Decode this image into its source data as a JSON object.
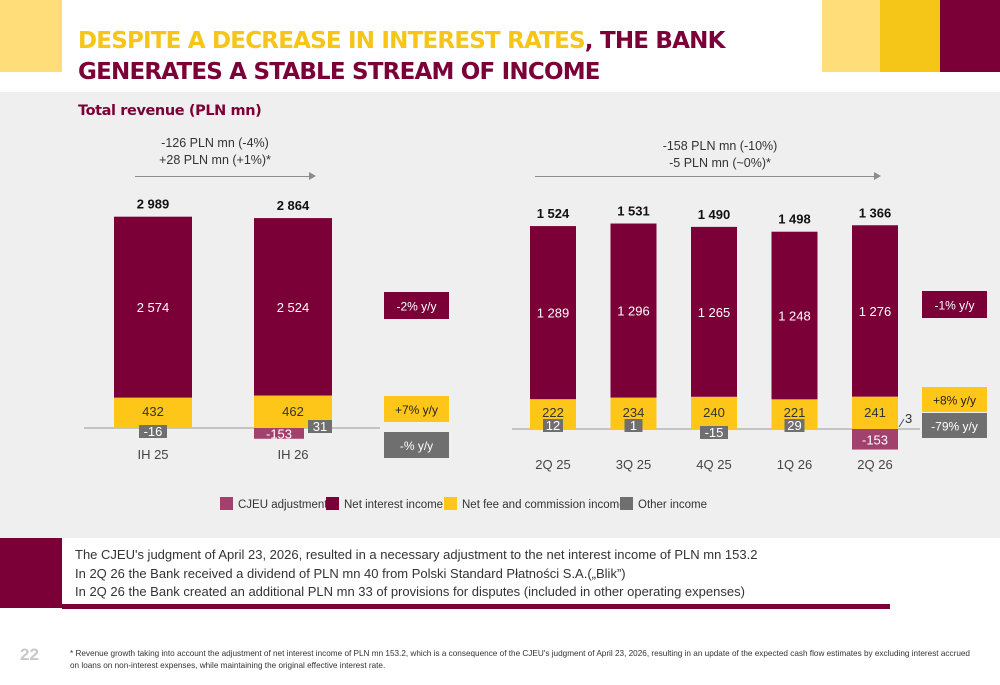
{
  "header": {
    "title_highlight": "DESPITE A DECREASE IN INTEREST RATES",
    "title_rest": ", THE BANK",
    "title_line2": "GENERATES A STABLE STREAM OF INCOME"
  },
  "subtitle": "Total revenue (PLN mn)",
  "change_notes": {
    "left": [
      "-126 PLN mn (-4%)",
      "+28 PLN mn (+1%)*"
    ],
    "right": [
      "-158 PLN mn (-10%)",
      "-5 PLN mn (~0%)*"
    ]
  },
  "colors": {
    "cjeu": "#a3416e",
    "nii": "#7a0037",
    "fee": "#ffc61a",
    "other": "#6f6f6f",
    "brand_yellow": "#f5c518"
  },
  "chart_data": [
    {
      "type": "bar",
      "stacked": true,
      "title": "Total revenue (PLN mn)",
      "categories": [
        "IH 25",
        "IH 26"
      ],
      "totals": [
        "2 989",
        "2 864"
      ],
      "series": [
        {
          "name": "Net interest income",
          "values": [
            2574,
            2524
          ],
          "labels": [
            "2 574",
            "2 524"
          ]
        },
        {
          "name": "Net fee and commission income",
          "values": [
            432,
            462
          ],
          "labels": [
            "432",
            "462"
          ]
        },
        {
          "name": "Other income",
          "values": [
            -16,
            31
          ],
          "labels": [
            "-16",
            "31"
          ]
        },
        {
          "name": "CJEU adjustment",
          "values": [
            0,
            -153
          ],
          "labels": [
            "",
            "-153"
          ]
        }
      ],
      "yoy": [
        "-2% y/y",
        "+7% y/y",
        "-% y/y"
      ]
    },
    {
      "type": "bar",
      "stacked": true,
      "categories": [
        "2Q 25",
        "3Q 25",
        "4Q 25",
        "1Q 26",
        "2Q 26"
      ],
      "totals": [
        "1 524",
        "1 531",
        "1 490",
        "1 498",
        "1 366"
      ],
      "series": [
        {
          "name": "Net interest income",
          "values": [
            1289,
            1296,
            1265,
            1248,
            1276
          ],
          "labels": [
            "1 289",
            "1 296",
            "1 265",
            "1 248",
            "1 276"
          ]
        },
        {
          "name": "Net fee and commission income",
          "values": [
            222,
            234,
            240,
            221,
            241
          ],
          "labels": [
            "222",
            "234",
            "240",
            "221",
            "241"
          ]
        },
        {
          "name": "Other income",
          "values": [
            12,
            1,
            -15,
            29,
            3
          ],
          "labels": [
            "12",
            "1",
            "-15",
            "29",
            "3"
          ]
        },
        {
          "name": "CJEU adjustment",
          "values": [
            0,
            0,
            0,
            0,
            -153
          ],
          "labels": [
            "",
            "",
            "",
            "",
            "-153"
          ]
        }
      ],
      "yoy": [
        "-1% y/y",
        "+8% y/y",
        "-79% y/y"
      ]
    }
  ],
  "legend": [
    {
      "label": "CJEU adjustment",
      "key": "cjeu"
    },
    {
      "label": "Net interest income",
      "key": "nii"
    },
    {
      "label": "Net fee and commission income",
      "key": "fee"
    },
    {
      "label": "Other income",
      "key": "other"
    }
  ],
  "notes": [
    "The CJEU's judgment of April 23, 2026, resulted in a necessary adjustment to the net interest income of PLN mn 153.2",
    "In 2Q 26 the Bank received a dividend of PLN mn 40 from Polski Standard Płatności S.A.(„Blik”)",
    "In 2Q 26 the Bank created an additional PLN mn 33 of provisions for disputes (included in other operating expenses)"
  ],
  "page_number": "22",
  "footnote": "* Revenue growth taking into account the adjustment of net interest income of PLN mn 153.2, which is a consequence of the CJEU's judgment of April 23, 2026, resulting in an update of the expected cash flow estimates by excluding interest accrued on loans on non-interest expenses, while maintaining the original effective interest rate."
}
